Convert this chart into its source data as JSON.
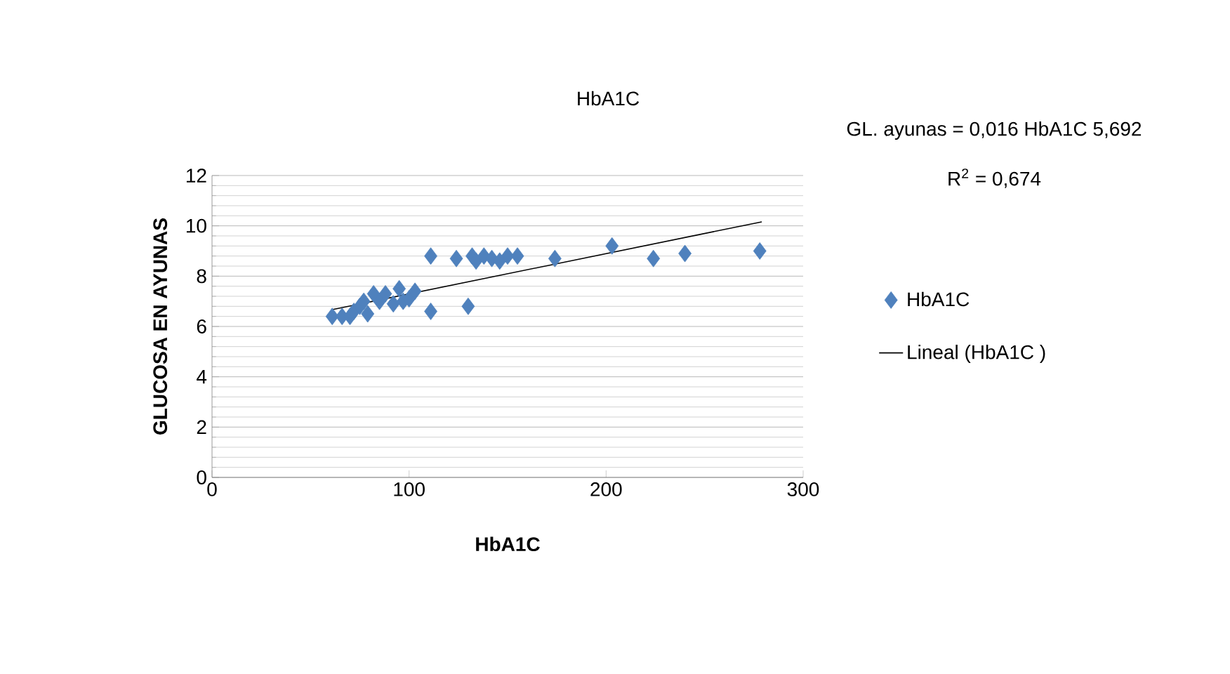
{
  "chart_data": {
    "type": "scatter",
    "title": "HbA1C",
    "xlabel": "HbA1C",
    "ylabel": "GLUCOSA EN AYUNAS",
    "xlim": [
      0,
      300
    ],
    "xticks": [
      0,
      100,
      200,
      300
    ],
    "ylim": [
      0,
      12
    ],
    "yticks": [
      0,
      2,
      4,
      6,
      8,
      10,
      12
    ],
    "grid": "y",
    "legend": "right",
    "annotations": [
      "GL. ayunas = 0,016 HbA1C 5,692",
      "R$^{2}$ = 0,674"
    ],
    "series": [
      {
        "name": "HbA1C",
        "color": "#4f81bd",
        "marker": "diamond",
        "x": [
          61,
          66,
          70,
          72,
          75,
          77,
          79,
          82,
          85,
          88,
          92,
          95,
          97,
          100,
          103,
          111,
          111,
          124,
          130,
          132,
          134,
          138,
          142,
          146,
          150,
          155,
          174,
          203,
          224,
          240,
          278
        ],
        "values": [
          6.4,
          6.4,
          6.4,
          6.6,
          6.8,
          7.0,
          6.5,
          7.3,
          7.0,
          7.3,
          6.9,
          7.5,
          7.0,
          7.1,
          7.4,
          6.6,
          8.8,
          8.7,
          6.8,
          8.8,
          8.6,
          8.8,
          8.7,
          8.6,
          8.8,
          8.8,
          8.7,
          9.2,
          8.7,
          8.9,
          9.0
        ]
      },
      {
        "name": "Lineal (HbA1C )",
        "type": "line",
        "color": "#000000",
        "x": [
          61,
          279
        ],
        "values": [
          6.67,
          10.16
        ]
      }
    ]
  }
}
